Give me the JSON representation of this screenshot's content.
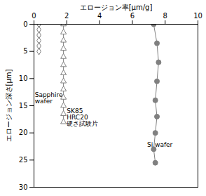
{
  "chart_data": {
    "type": "line",
    "xlabel": "エロージョン率[μm/g]",
    "ylabel": "エロージョン深さ[μm]",
    "xlim": [
      0,
      10
    ],
    "xticks": [
      0,
      2,
      4,
      6,
      8,
      10
    ],
    "ylim": [
      0,
      30
    ],
    "yticks": [
      0,
      5,
      10,
      15,
      20,
      25,
      30
    ],
    "grid": false,
    "series": [
      {
        "name": "Sapphire\nwafer",
        "color": "#808080",
        "marker": "diamond",
        "x": [
          0.3,
          0.3,
          0.3,
          0.3,
          0.3,
          0.3
        ],
        "y": [
          0,
          1,
          2,
          3,
          4,
          5
        ]
      },
      {
        "name": "SK85\nHRC20\n硬さ試験片",
        "color": "#808080",
        "marker": "triangle",
        "x": [
          1.8,
          1.8,
          1.8,
          1.8,
          1.8,
          1.8,
          1.8,
          1.8,
          1.8,
          1.8,
          1.8,
          1.8,
          1.8
        ],
        "y": [
          0,
          1.5,
          3,
          4.5,
          6,
          7.5,
          9,
          10.5,
          12,
          13.5,
          15,
          16.5,
          18
        ]
      },
      {
        "name": "Si wafer",
        "color": "#808080",
        "marker": "circle",
        "x": [
          7.3,
          7.5,
          7.6,
          7.5,
          7.4,
          7.5,
          7.4,
          7.3,
          7.4
        ],
        "y": [
          0,
          3.5,
          7,
          10.5,
          14,
          17,
          20,
          23,
          25.5
        ]
      }
    ]
  }
}
